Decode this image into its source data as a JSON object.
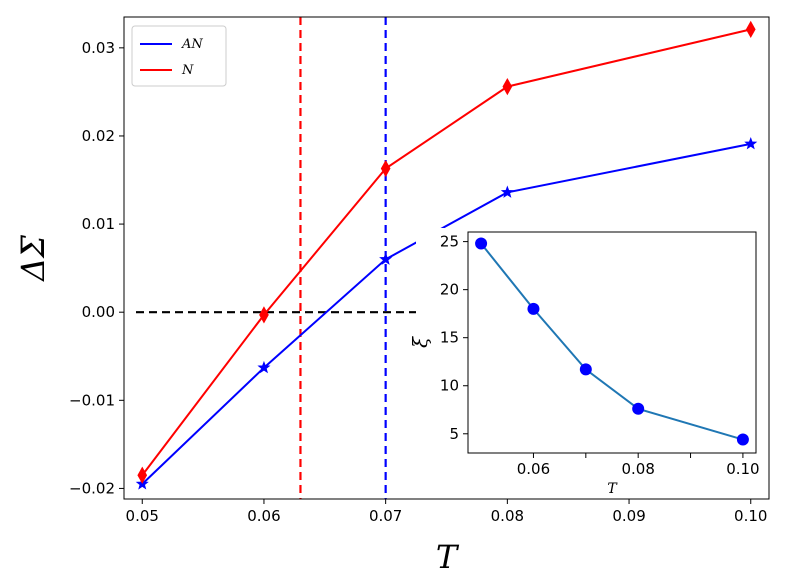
{
  "chart_data": [
    {
      "type": "line",
      "xlabel": "T",
      "ylabel": "ΔΣ",
      "xlim": [
        0.0485,
        0.1015
      ],
      "ylim": [
        -0.0212,
        0.0335
      ],
      "xticks": [
        0.05,
        0.06,
        0.07,
        0.08,
        0.09,
        0.1
      ],
      "xtick_labels": [
        "0.05",
        "0.06",
        "0.07",
        "0.08",
        "0.09",
        "0.10"
      ],
      "yticks": [
        -0.02,
        -0.01,
        0.0,
        0.01,
        0.02,
        0.03
      ],
      "ytick_labels": [
        "−0.02",
        "−0.01",
        "0.00",
        "0.01",
        "0.02",
        "0.03"
      ],
      "legend_position": "top-left",
      "series": [
        {
          "name": "AN",
          "color": "#0000ff",
          "marker": "star",
          "x": [
            0.05,
            0.06,
            0.07,
            0.08,
            0.1
          ],
          "y": [
            -0.0195,
            -0.0063,
            0.006,
            0.0136,
            0.0191
          ]
        },
        {
          "name": "N",
          "color": "#ff0000",
          "marker": "thin-diamond",
          "x": [
            0.05,
            0.06,
            0.07,
            0.08,
            0.1
          ],
          "y": [
            -0.0185,
            -0.0003,
            0.0163,
            0.0256,
            0.0321
          ]
        }
      ],
      "reference_lines": [
        {
          "orientation": "vertical",
          "x": 0.063,
          "color": "#ff0000",
          "style": "dashed"
        },
        {
          "orientation": "vertical",
          "x": 0.07,
          "color": "#0000ff",
          "style": "dashed"
        },
        {
          "orientation": "horizontal",
          "y": 0.0,
          "color": "#000000",
          "style": "dashed"
        }
      ]
    },
    {
      "type": "line",
      "xlabel": "T",
      "ylabel": "ξ",
      "xlim": [
        0.0475,
        0.1025
      ],
      "ylim": [
        3.0,
        26.0
      ],
      "xticks": [
        0.06,
        0.07,
        0.08,
        0.09,
        0.1
      ],
      "xtick_labels": [
        "0.06",
        "",
        "0.08",
        "",
        "0.10"
      ],
      "yticks": [
        5,
        10,
        15,
        20,
        25
      ],
      "ytick_labels": [
        "5",
        "10",
        "15",
        "20",
        "25"
      ],
      "series": [
        {
          "color": "#1f77b4",
          "marker_color": "#0000ff",
          "marker": "circle",
          "x": [
            0.05,
            0.06,
            0.07,
            0.08,
            0.1
          ],
          "y": [
            24.8,
            18.0,
            11.7,
            7.6,
            4.4
          ]
        }
      ]
    }
  ]
}
